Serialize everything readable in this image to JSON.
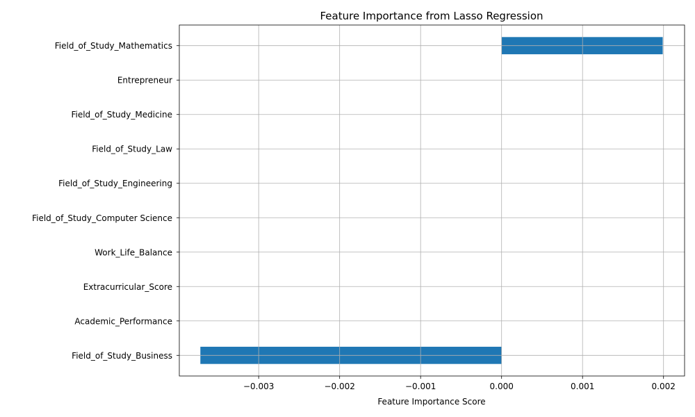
{
  "chart_data": {
    "type": "bar",
    "orientation": "horizontal",
    "title": "Feature Importance from Lasso Regression",
    "xlabel": "Feature Importance Score",
    "ylabel": "",
    "categories": [
      "Field_of_Study_Business",
      "Academic_Performance",
      "Extracurricular_Score",
      "Work_Life_Balance",
      "Field_of_Study_Computer Science",
      "Field_of_Study_Engineering",
      "Field_of_Study_Law",
      "Field_of_Study_Medicine",
      "Entrepreneur",
      "Field_of_Study_Mathematics"
    ],
    "values": [
      -0.00372,
      0,
      0,
      0,
      0,
      0,
      0,
      0,
      0,
      0.00199
    ],
    "xlim": [
      -0.00398,
      0.00226
    ],
    "xticks": [
      -0.003,
      -0.002,
      -0.001,
      0.0,
      0.001,
      0.002
    ],
    "xtick_labels": [
      "−0.003",
      "−0.002",
      "−0.001",
      "0.000",
      "0.001",
      "0.002"
    ],
    "grid": true,
    "bar_color": "#1f77b4"
  }
}
